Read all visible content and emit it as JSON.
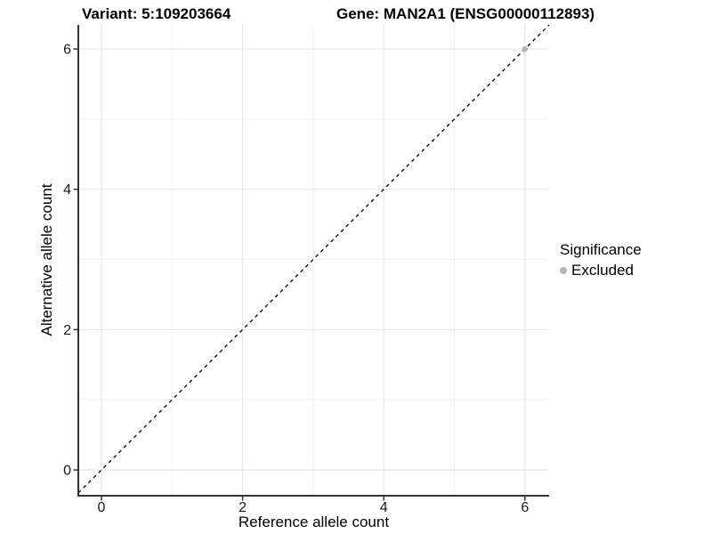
{
  "header": {
    "variant_title": "Variant: 5:109203664",
    "gene_title": "Gene: MAN2A1 (ENSG00000112893)"
  },
  "axes": {
    "x_label": "Reference allele count",
    "y_label": "Alternative allele count"
  },
  "legend": {
    "title": "Significance",
    "entries": [
      {
        "label": "Excluded",
        "color": "#b5b5b5"
      }
    ]
  },
  "colors": {
    "background": "#ffffff",
    "axis_line": "#333333",
    "tick_mark": "#333333",
    "major_grid": "#e2e2e2",
    "minor_grid": "#f0f0f0",
    "identity_line": "#000000",
    "excluded_point": "#b5b5b5",
    "text": "#000000"
  },
  "chart_data": {
    "type": "scatter",
    "title": "Variant: 5:109203664 — Gene: MAN2A1 (ENSG00000112893)",
    "xlabel": "Reference allele count",
    "ylabel": "Alternative allele count",
    "xticks": [
      0,
      2,
      4,
      6
    ],
    "yticks": [
      0,
      2,
      4,
      6
    ],
    "minor_xticks": [
      1,
      3,
      5
    ],
    "minor_yticks": [
      1,
      3,
      5
    ],
    "xlim": [
      -0.328,
      6.343
    ],
    "ylim": [
      -0.368,
      6.343
    ],
    "grid": "major+minor",
    "legend_title": "Significance",
    "legend_position": "right",
    "reference_line": {
      "type": "identity",
      "equation": "y = x",
      "linestyle": "dashed",
      "color": "#000000"
    },
    "series": [
      {
        "name": "Excluded",
        "color": "#b5b5b5",
        "point_radius": 3.2,
        "points": [
          {
            "x": 6,
            "y": 6
          }
        ]
      }
    ]
  }
}
